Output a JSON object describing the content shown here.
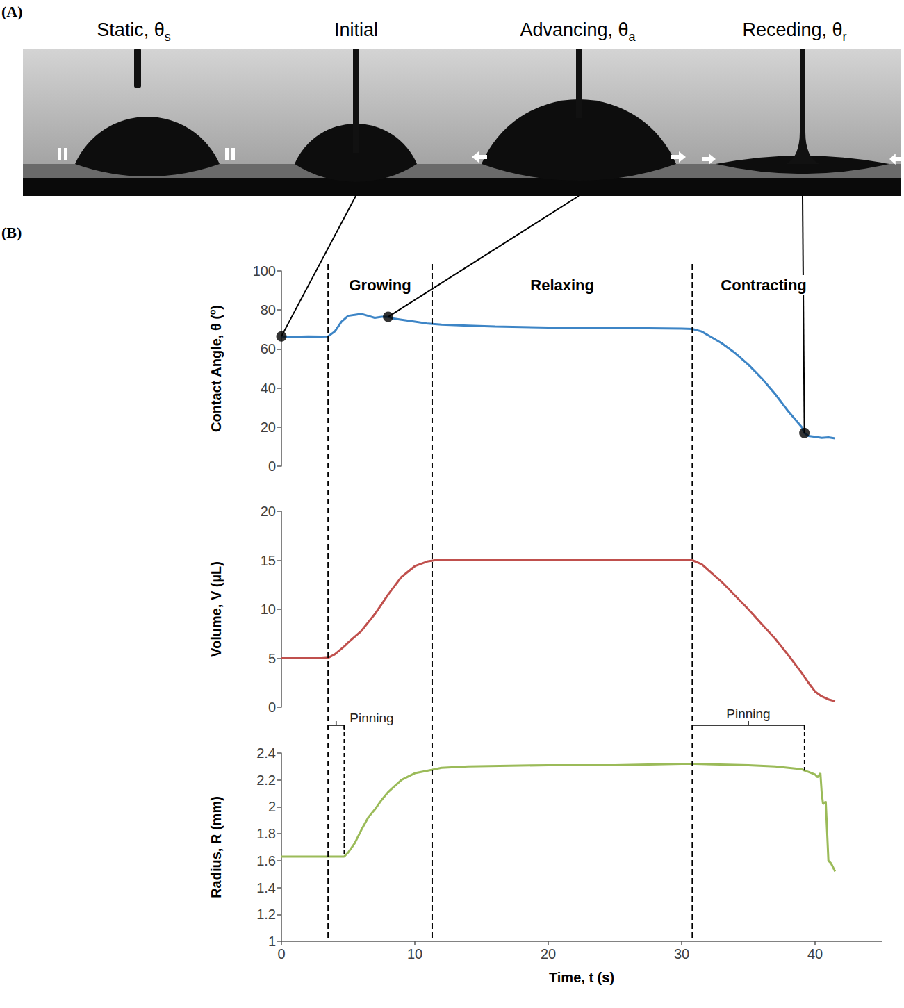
{
  "panels": [
    {
      "letter": "(A)",
      "images": [
        {
          "title": "Static, θ",
          "subscript": "s"
        },
        {
          "title": "Initial"
        },
        {
          "title": "Advancing, θ",
          "subscript": "a"
        },
        {
          "title": "Receding, θ",
          "subscript": "r"
        }
      ]
    },
    {
      "letter": "(B)"
    }
  ],
  "chart_data": [
    {
      "type": "line",
      "y_label": "Contact Angle, θ (º)",
      "color": "#3d85c6",
      "grid": false,
      "tick_labels": "y",
      "xlim": [
        0,
        45
      ],
      "ylim": [
        0,
        100
      ],
      "yticks": [
        0,
        20,
        40,
        60,
        80,
        100
      ],
      "x": [
        0,
        1,
        2,
        3,
        3.5,
        4,
        4.5,
        5,
        5.5,
        6,
        6.5,
        7,
        7.5,
        8,
        8.5,
        9,
        10,
        11,
        12,
        14,
        16,
        20,
        25,
        30,
        30.8,
        31.5,
        32,
        33,
        34,
        35,
        36,
        37,
        38,
        39,
        39.2,
        39.5,
        40,
        40.5,
        41,
        41.5
      ],
      "values": [
        66.5,
        66.3,
        66.5,
        66.4,
        66.5,
        69,
        74,
        77,
        77.5,
        78,
        77,
        76,
        76.5,
        76.5,
        75.5,
        75,
        74,
        73,
        72.5,
        72,
        71.5,
        71,
        70.8,
        70.5,
        70.3,
        69,
        67,
        63,
        58,
        52,
        45,
        37,
        28,
        20,
        17,
        15.5,
        15,
        14.5,
        14.8,
        14.2
      ],
      "phases": [
        {
          "label": "Growing",
          "start": 3.5,
          "end": 11.3
        },
        {
          "label": "Relaxing",
          "start": 11.3,
          "end": 30.8
        },
        {
          "label": "Contracting",
          "start": 30.8
        }
      ],
      "points": [
        {
          "x": 0,
          "y": 66.5,
          "image": "Initial"
        },
        {
          "x": 8,
          "y": 76.5,
          "image": "Advancing, θ"
        },
        {
          "x": 39.2,
          "y": 17,
          "image": "Receding, θ"
        }
      ]
    },
    {
      "type": "line",
      "y_label": "Volume, V (µL)",
      "color": "#c0504d",
      "grid": false,
      "tick_labels": "y",
      "xlim": [
        0,
        45
      ],
      "ylim": [
        0,
        20
      ],
      "yticks": [
        0,
        5,
        10,
        15,
        20
      ],
      "x": [
        0,
        1,
        2,
        3,
        3.5,
        4,
        4.7,
        5,
        6,
        7,
        8,
        9,
        10,
        11,
        11.5,
        15,
        20,
        25,
        30,
        30.8,
        31.5,
        32,
        33,
        34,
        35,
        36,
        37,
        38,
        39,
        39.5,
        40,
        40.5,
        41,
        41.5
      ],
      "values": [
        5,
        5,
        5,
        5,
        5.05,
        5.4,
        6.2,
        6.6,
        7.8,
        9.5,
        11.5,
        13.3,
        14.4,
        14.9,
        15,
        15,
        15,
        15,
        15,
        15,
        14.6,
        14,
        12.8,
        11.4,
        10,
        8.5,
        7,
        5.3,
        3.5,
        2.5,
        1.6,
        1.1,
        0.8,
        0.6
      ]
    },
    {
      "type": "line",
      "y_label": "Radius, R (mm)",
      "x_label": "Time, t (s)",
      "color": "#9bbb59",
      "grid": false,
      "xlim": [
        0,
        45
      ],
      "xticks": [
        0,
        10,
        20,
        30,
        40
      ],
      "ylim": [
        1,
        2.4
      ],
      "yticks": [
        1,
        1.2,
        1.4,
        1.6,
        1.8,
        2,
        2.2,
        2.4
      ],
      "x": [
        0,
        1,
        2,
        3,
        4,
        4.7,
        5,
        5.5,
        6,
        6.5,
        7,
        7.5,
        8,
        9,
        10,
        11,
        12,
        14,
        20,
        25,
        30,
        31,
        35,
        37,
        38,
        39,
        39.2,
        39.5,
        40,
        40.2,
        40.4,
        40.5,
        40.6,
        40.8,
        41,
        41.2,
        41.5
      ],
      "values": [
        1.63,
        1.63,
        1.63,
        1.63,
        1.63,
        1.63,
        1.66,
        1.73,
        1.83,
        1.92,
        1.98,
        2.05,
        2.11,
        2.2,
        2.25,
        2.27,
        2.29,
        2.3,
        2.31,
        2.31,
        2.32,
        2.32,
        2.31,
        2.3,
        2.29,
        2.28,
        2.27,
        2.26,
        2.24,
        2.22,
        2.25,
        2.1,
        2.02,
        2.04,
        1.6,
        1.58,
        1.52
      ],
      "pinning": [
        {
          "label": "Pinning",
          "start": 3.5,
          "end": 4.7
        },
        {
          "label": "Pinning",
          "start": 30.8,
          "end": 39.2
        }
      ]
    }
  ]
}
